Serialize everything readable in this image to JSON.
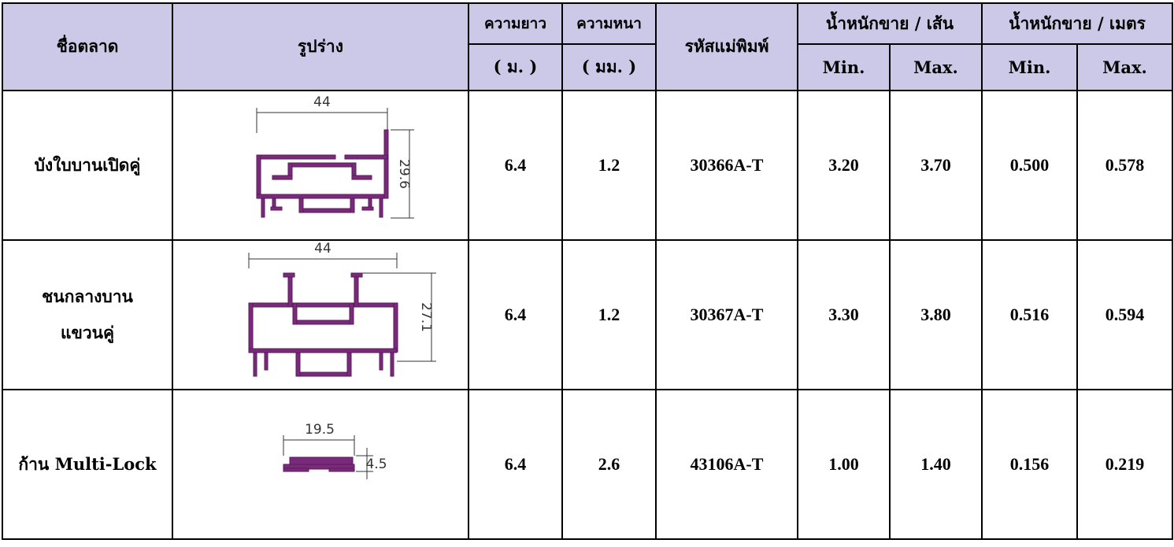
{
  "headers": {
    "name": "ชื่อตลาด",
    "shape": "รูปร่าง",
    "length": "ความยาว",
    "length_unit": "( ม. )",
    "thickness": "ความหนา",
    "thickness_unit": "( มม. )",
    "mold_code": "รหัสแม่พิมพ์",
    "weight_per_piece": "น้ำหนักขาย / เส้น",
    "weight_per_meter": "น้ำหนักขาย / เมตร",
    "min": "Min.",
    "max": "Max."
  },
  "rows": [
    {
      "name_lines": [
        "บังใบบานเปิดคู่"
      ],
      "dims": [
        "44",
        "29.6"
      ],
      "length": "6.4",
      "thickness": "1.2",
      "code": "30366A-T",
      "wpp_min": "3.20",
      "wpp_max": "3.70",
      "wpm_min": "0.500",
      "wpm_max": "0.578"
    },
    {
      "name_lines": [
        "ชนกลางบาน",
        "แขวนคู่"
      ],
      "dims": [
        "44",
        "27.1"
      ],
      "length": "6.4",
      "thickness": "1.2",
      "code": "30367A-T",
      "wpp_min": "3.30",
      "wpp_max": "3.80",
      "wpm_min": "0.516",
      "wpm_max": "0.594"
    },
    {
      "name_lines": [
        "ก้าน Multi-Lock"
      ],
      "dims": [
        "19.5",
        "4.5"
      ],
      "length": "6.4",
      "thickness": "2.6",
      "code": "43106A-T",
      "wpp_min": "1.00",
      "wpp_max": "1.40",
      "wpm_min": "0.156",
      "wpm_max": "0.219"
    }
  ],
  "colors": {
    "header_bg": "#ccc9e8",
    "profile": "#7a2a7a"
  }
}
